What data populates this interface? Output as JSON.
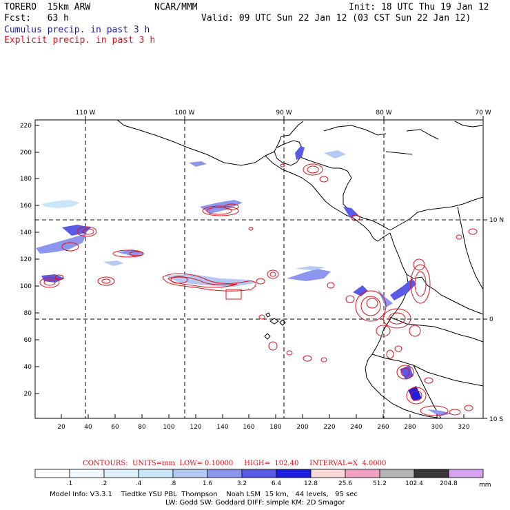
{
  "header": {
    "model": "TORERO  15km ARW",
    "org": "NCAR/MMM",
    "init": "Init: 18 UTC Thu 19 Jan 12",
    "fcst": "Fcst:   63 h",
    "valid": "Valid: 09 UTC Sun 22 Jan 12 (03 CST Sun 22 Jan 12)",
    "cumulus_label": "Cumulus precip. in past 3 h",
    "explicit_label": "Explicit precip. in past 3 h"
  },
  "colors": {
    "cumulus": "#1a1aa0",
    "explicit": "#e0101a",
    "coast": "#000000"
  },
  "axes": {
    "top_lon": [
      "110 W",
      "100 W",
      "90 W",
      "80 W",
      "70 W"
    ],
    "right_lat": [
      "10 N",
      "0",
      "10 S"
    ],
    "left_y": [
      "220",
      "200",
      "180",
      "160",
      "140",
      "120",
      "100",
      "80",
      "60",
      "40",
      "20"
    ],
    "bottom_x": [
      "20",
      "40",
      "60",
      "80",
      "100",
      "120",
      "140",
      "160",
      "180",
      "200",
      "220",
      "240",
      "260",
      "280",
      "300",
      "320"
    ]
  },
  "contour_info": {
    "label": "CONTOURS:  UNITS=mm  LOW= 0.10000     HIGH=  102.40     INTERVAL=X  4.0000"
  },
  "colorbar": {
    "levels": [
      ".1",
      ".2",
      ".4",
      ".8",
      "1.6",
      "3.2",
      "6.4",
      "12.8",
      "25.6",
      "51.2",
      "102.4",
      "204.8"
    ],
    "unit": "mm",
    "colors": [
      "#ffffff",
      "#f2f8ff",
      "#dff0fb",
      "#c8e6f8",
      "#b4c8f4",
      "#8c96ee",
      "#5a5ae6",
      "#1e1ee0",
      "#f8d8d8",
      "#f0a0c0",
      "#b4b4b4",
      "#383838",
      "#d4a0f0"
    ]
  },
  "footer": {
    "line1": "Model Info: V3.3.1    Tiedtke YSU PBL  Thompson    Noah LSM  15 km,   44 levels,   95 sec",
    "line2": "LW: Godd SW: Goddard DIFF: simple KM: 2D Smagor"
  }
}
